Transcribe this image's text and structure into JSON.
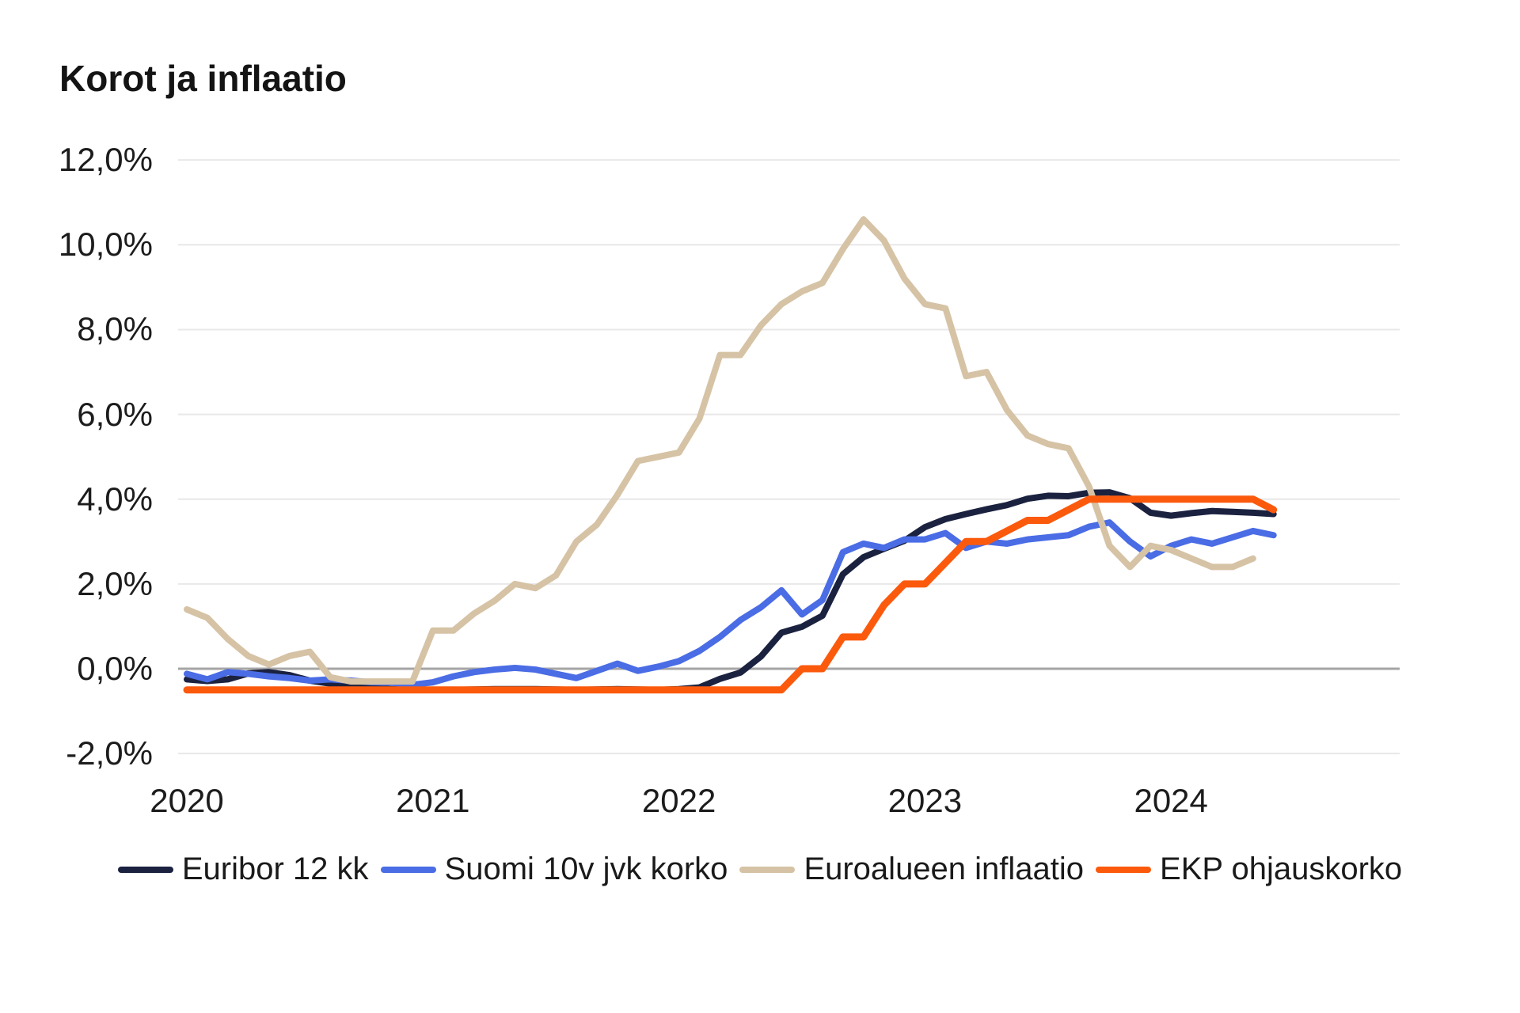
{
  "colors": {
    "background": "#ffffff",
    "grid": "#e8e8e8",
    "zero_line": "#a5a5a5",
    "text": "#1c1c1c",
    "title_text": "#141414"
  },
  "chart_data": {
    "type": "line",
    "title": "Korot ja inflaatio",
    "xlabel": "",
    "ylabel": "",
    "ylim": [
      -2,
      12
    ],
    "grid": "horizontal",
    "legend_position": "bottom",
    "x_tick_labels": [
      "2020",
      "2021",
      "2022",
      "2023",
      "2024"
    ],
    "y_ticks": [
      12,
      10,
      8,
      6,
      4,
      2,
      0,
      -2
    ],
    "y_tick_labels": [
      "12,0%",
      "10,0%",
      "8,0%",
      "6,0%",
      "4,0%",
      "2,0%",
      "0,0%",
      "-2,0%"
    ],
    "x_start_year": 2020,
    "points_per_year": 12,
    "series": [
      {
        "name": "Euribor 12 kk",
        "color": "#1b2240",
        "stroke_width": 8,
        "values": [
          -0.25,
          -0.29,
          -0.25,
          -0.11,
          -0.08,
          -0.15,
          -0.28,
          -0.35,
          -0.41,
          -0.46,
          -0.48,
          -0.5,
          -0.5,
          -0.5,
          -0.49,
          -0.48,
          -0.48,
          -0.48,
          -0.49,
          -0.5,
          -0.49,
          -0.48,
          -0.49,
          -0.5,
          -0.48,
          -0.44,
          -0.24,
          -0.09,
          0.29,
          0.85,
          0.99,
          1.25,
          2.23,
          2.63,
          2.83,
          3.02,
          3.34,
          3.53,
          3.65,
          3.76,
          3.86,
          4.01,
          4.08,
          4.07,
          4.15,
          4.16,
          4.02,
          3.68,
          3.61,
          3.67,
          3.72,
          3.7,
          3.68,
          3.65
        ]
      },
      {
        "name": "Suomi 10v jvk korko",
        "color": "#4a6ce5",
        "stroke_width": 8,
        "values": [
          -0.12,
          -0.25,
          -0.08,
          -0.12,
          -0.18,
          -0.22,
          -0.28,
          -0.25,
          -0.28,
          -0.32,
          -0.33,
          -0.38,
          -0.32,
          -0.18,
          -0.08,
          -0.02,
          0.02,
          -0.02,
          -0.12,
          -0.22,
          -0.05,
          0.12,
          -0.05,
          0.05,
          0.18,
          0.42,
          0.75,
          1.15,
          1.45,
          1.85,
          1.28,
          1.62,
          2.75,
          2.95,
          2.85,
          3.05,
          3.05,
          3.2,
          2.85,
          3.0,
          2.95,
          3.05,
          3.1,
          3.15,
          3.35,
          3.45,
          3.0,
          2.65,
          2.9,
          3.05,
          2.95,
          3.1,
          3.25,
          3.15
        ]
      },
      {
        "name": "Euroalueen inflaatio",
        "color": "#d6c3a5",
        "stroke_width": 8,
        "values": [
          1.4,
          1.2,
          0.7,
          0.3,
          0.1,
          0.3,
          0.4,
          -0.2,
          -0.3,
          -0.3,
          -0.3,
          -0.3,
          0.9,
          0.9,
          1.3,
          1.6,
          2.0,
          1.9,
          2.2,
          3.0,
          3.4,
          4.1,
          4.9,
          5.0,
          5.1,
          5.9,
          7.4,
          7.4,
          8.1,
          8.6,
          8.9,
          9.1,
          9.9,
          10.6,
          10.1,
          9.2,
          8.6,
          8.5,
          6.9,
          7.0,
          6.1,
          5.5,
          5.3,
          5.2,
          4.3,
          2.9,
          2.4,
          2.9,
          2.8,
          2.6,
          2.4,
          2.4,
          2.6
        ]
      },
      {
        "name": "EKP ohjauskorko",
        "color": "#fb5a0d",
        "stroke_width": 9,
        "values": [
          -0.5,
          -0.5,
          -0.5,
          -0.5,
          -0.5,
          -0.5,
          -0.5,
          -0.5,
          -0.5,
          -0.5,
          -0.5,
          -0.5,
          -0.5,
          -0.5,
          -0.5,
          -0.5,
          -0.5,
          -0.5,
          -0.5,
          -0.5,
          -0.5,
          -0.5,
          -0.5,
          -0.5,
          -0.5,
          -0.5,
          -0.5,
          -0.5,
          -0.5,
          -0.5,
          0.0,
          0.0,
          0.75,
          0.75,
          1.5,
          2.0,
          2.0,
          2.5,
          3.0,
          3.0,
          3.25,
          3.5,
          3.5,
          3.75,
          4.0,
          4.0,
          4.0,
          4.0,
          4.0,
          4.0,
          4.0,
          4.0,
          4.0,
          3.75
        ]
      }
    ]
  }
}
